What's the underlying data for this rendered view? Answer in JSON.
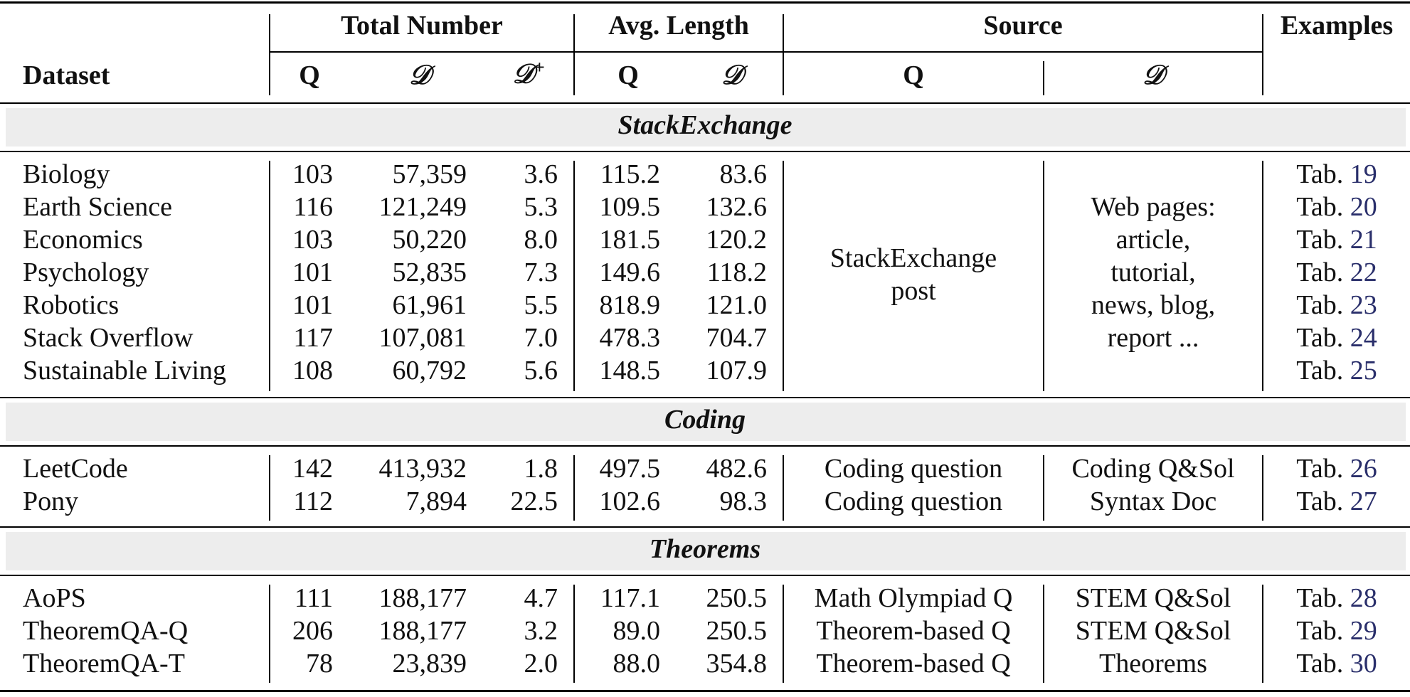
{
  "header": {
    "dataset": "Dataset",
    "total_number": "Total Number",
    "avg_length": "Avg. Length",
    "source": "Source",
    "examples": "Examples",
    "q": "Q",
    "d": "𝒟",
    "d_plus_base": "𝒟",
    "d_plus_sup": "+"
  },
  "sections": [
    {
      "title": "StackExchange",
      "rows": [
        {
          "dataset": "Biology",
          "q": "103",
          "d": "57,359",
          "dplus": "3.6",
          "lq": "115.2",
          "ld": "83.6",
          "tab": "Tab.",
          "ref": "19"
        },
        {
          "dataset": "Earth Science",
          "q": "116",
          "d": "121,249",
          "dplus": "5.3",
          "lq": "109.5",
          "ld": "132.6",
          "tab": "Tab.",
          "ref": "20"
        },
        {
          "dataset": "Economics",
          "q": "103",
          "d": "50,220",
          "dplus": "8.0",
          "lq": "181.5",
          "ld": "120.2",
          "tab": "Tab.",
          "ref": "21"
        },
        {
          "dataset": "Psychology",
          "q": "101",
          "d": "52,835",
          "dplus": "7.3",
          "lq": "149.6",
          "ld": "118.2",
          "tab": "Tab.",
          "ref": "22"
        },
        {
          "dataset": "Robotics",
          "q": "101",
          "d": "61,961",
          "dplus": "5.5",
          "lq": "818.9",
          "ld": "121.0",
          "tab": "Tab.",
          "ref": "23"
        },
        {
          "dataset": "Stack Overflow",
          "q": "117",
          "d": "107,081",
          "dplus": "7.0",
          "lq": "478.3",
          "ld": "704.7",
          "tab": "Tab.",
          "ref": "24"
        },
        {
          "dataset": "Sustainable Living",
          "q": "108",
          "d": "60,792",
          "dplus": "5.6",
          "lq": "148.5",
          "ld": "107.9",
          "tab": "Tab.",
          "ref": "25"
        }
      ],
      "source_q": [
        "StackExchange",
        "post"
      ],
      "source_d": [
        "Web pages:",
        "article,",
        "tutorial,",
        "news, blog,",
        "report ..."
      ]
    },
    {
      "title": "Coding",
      "rows": [
        {
          "dataset": "LeetCode",
          "q": "142",
          "d": "413,932",
          "dplus": "1.8",
          "lq": "497.5",
          "ld": "482.6",
          "sq": "Coding question",
          "sd": "Coding Q&Sol",
          "tab": "Tab.",
          "ref": "26"
        },
        {
          "dataset": "Pony",
          "q": "112",
          "d": "7,894",
          "dplus": "22.5",
          "lq": "102.6",
          "ld": "98.3",
          "sq": "Coding question",
          "sd": "Syntax Doc",
          "tab": "Tab.",
          "ref": "27"
        }
      ]
    },
    {
      "title": "Theorems",
      "rows": [
        {
          "dataset": "AoPS",
          "q": "111",
          "d": "188,177",
          "dplus": "4.7",
          "lq": "117.1",
          "ld": "250.5",
          "sq": "Math Olympiad Q",
          "sd": "STEM Q&Sol",
          "tab": "Tab.",
          "ref": "28"
        },
        {
          "dataset": "TheoremQA-Q",
          "q": "206",
          "d": "188,177",
          "dplus": "3.2",
          "lq": "89.0",
          "ld": "250.5",
          "sq": "Theorem-based Q",
          "sd": "STEM Q&Sol",
          "tab": "Tab.",
          "ref": "29"
        },
        {
          "dataset": "TheoremQA-T",
          "q": "78",
          "d": "23,839",
          "dplus": "2.0",
          "lq": "88.0",
          "ld": "354.8",
          "sq": "Theorem-based Q",
          "sd": "Theorems",
          "tab": "Tab.",
          "ref": "30"
        }
      ]
    }
  ],
  "colors": {
    "ref_link": "#2a2f6b",
    "band": "#ededed"
  }
}
